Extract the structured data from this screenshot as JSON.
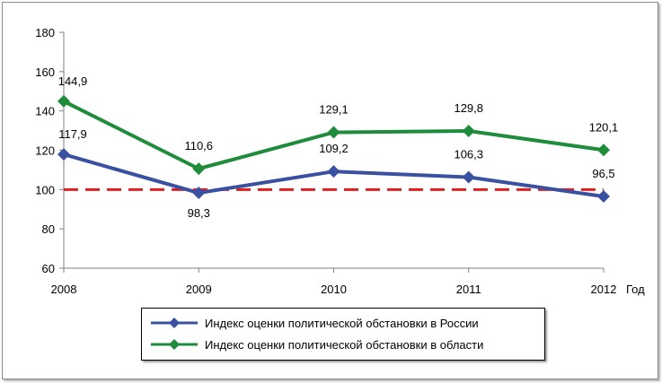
{
  "chart_data": {
    "type": "line",
    "x": [
      "2008",
      "2009",
      "2010",
      "2011",
      "2012"
    ],
    "xlabel": "Год",
    "ylim": [
      60,
      180
    ],
    "yticks": [
      60,
      80,
      100,
      120,
      140,
      160,
      180
    ],
    "series": [
      {
        "name": "Индекс оценки политической обстановки в России",
        "color": "#3a50a0",
        "values": [
          117.9,
          98.3,
          109.2,
          106.3,
          96.5
        ],
        "labels": [
          "117,9",
          "98,3",
          "109,2",
          "106,3",
          "96,5"
        ]
      },
      {
        "name": "Индекс оценки политической обстановки в области",
        "color": "#1e8c3a",
        "values": [
          144.9,
          110.6,
          129.1,
          129.8,
          120.1
        ],
        "labels": [
          "144,9",
          "110,6",
          "129,1",
          "129,8",
          "120,1"
        ]
      }
    ],
    "reference_line": {
      "value": 100,
      "color": "#e02020",
      "style": "dashed"
    },
    "grid": false,
    "legend_position": "bottom"
  }
}
